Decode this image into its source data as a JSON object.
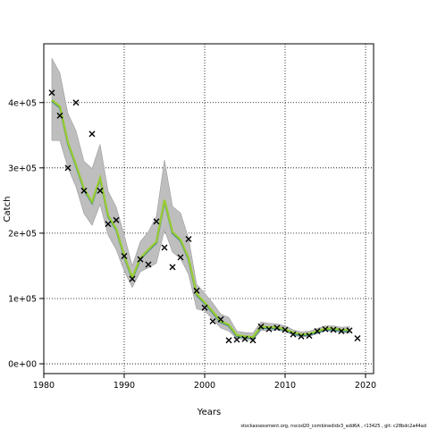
{
  "chart_data": {
    "type": "line",
    "xlabel": "Years",
    "ylabel": "Catch",
    "xlim": [
      1980,
      2021
    ],
    "ylim": [
      -15000,
      490000
    ],
    "x_ticks": [
      1980,
      1990,
      2000,
      2010,
      2020
    ],
    "y_ticks": [
      0,
      100000,
      200000,
      300000,
      400000
    ],
    "y_tick_labels": [
      "0e+00",
      "1e+05",
      "2e+05",
      "3e+05",
      "4e+05"
    ],
    "grid": true,
    "legend": "none",
    "footer": "stockassessment.org,  nscod20_combinedidx3_add6A  ,  r13425  ,  git:  c28bdc2a44ad",
    "colors": {
      "band": "#bebebe",
      "band_edge": "#9a9a9a",
      "series_main": "#9acd32",
      "series_alt": "#2e8b57",
      "series_alt2": "#4682b4",
      "observed": "#000000"
    },
    "series": [
      {
        "role": "estimate",
        "x": [
          1981,
          1982,
          1983,
          1984,
          1985,
          1986,
          1987,
          1988,
          1989,
          1990,
          1991,
          1992,
          1993,
          1994,
          1995,
          1996,
          1997,
          1998,
          1999,
          2000,
          2001,
          2002,
          2003,
          2004,
          2005,
          2006,
          2007,
          2008,
          2009,
          2010,
          2011,
          2012,
          2013,
          2014,
          2015,
          2016,
          2017,
          2018
        ],
        "values": [
          404000,
          394000,
          339000,
          305000,
          268000,
          248000,
          285000,
          227000,
          207000,
          166000,
          132000,
          162000,
          175000,
          187000,
          251000,
          202000,
          190000,
          162000,
          107000,
          94000,
          80000,
          65000,
          60000,
          44000,
          42000,
          41000,
          57000,
          56000,
          56000,
          53000,
          48000,
          45000,
          46000,
          50000,
          54000,
          54000,
          52000,
          52000
        ],
        "upper": [
          468000,
          445000,
          383000,
          357000,
          310000,
          299000,
          336000,
          264000,
          240000,
          197000,
          150000,
          187000,
          202000,
          226000,
          312000,
          241000,
          231000,
          192000,
          122000,
          108000,
          93000,
          76000,
          71000,
          50000,
          48000,
          47000,
          64000,
          62000,
          61000,
          58000,
          52000,
          49000,
          50000,
          54000,
          58000,
          58000,
          56000,
          57000
        ],
        "lower": [
          342000,
          342000,
          300000,
          271000,
          230000,
          212000,
          244000,
          197000,
          175000,
          142000,
          117000,
          141000,
          147000,
          154000,
          205000,
          171000,
          161000,
          137000,
          84000,
          81000,
          68000,
          55000,
          50000,
          39000,
          37000,
          36000,
          51000,
          51000,
          52000,
          49000,
          44000,
          41000,
          42000,
          46000,
          50000,
          50000,
          48000,
          47000
        ]
      },
      {
        "role": "observed",
        "x": [
          1981,
          1982,
          1983,
          1984,
          1985,
          1986,
          1987,
          1988,
          1989,
          1990,
          1991,
          1992,
          1993,
          1994,
          1995,
          1996,
          1997,
          1998,
          1999,
          2000,
          2001,
          2002,
          2003,
          2004,
          2005,
          2006,
          2007,
          2008,
          2009,
          2010,
          2011,
          2012,
          2013,
          2014,
          2015,
          2016,
          2017,
          2018,
          2019
        ],
        "values": [
          415000,
          380000,
          300000,
          400000,
          265000,
          352000,
          265000,
          214000,
          220000,
          165000,
          130000,
          160000,
          152000,
          218000,
          178000,
          148000,
          163000,
          191000,
          112000,
          86000,
          65000,
          68000,
          36000,
          37000,
          38000,
          36000,
          57000,
          53000,
          55000,
          52000,
          45000,
          42000,
          43000,
          50000,
          53000,
          52000,
          50000,
          51000,
          39000
        ]
      }
    ]
  }
}
